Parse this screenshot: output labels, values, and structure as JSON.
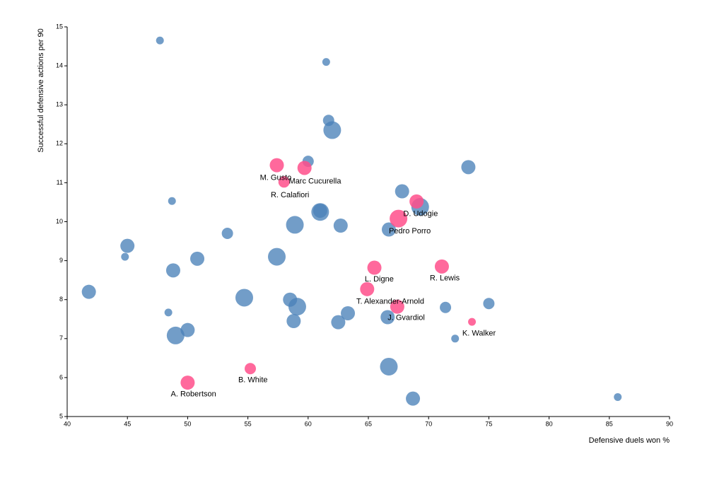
{
  "chart_data": {
    "type": "scatter",
    "xlabel": "Defensive duels won %",
    "ylabel": "Successful defensive actions per 90",
    "xlim": [
      40,
      90
    ],
    "ylim": [
      5,
      15
    ],
    "x_ticks": [
      40,
      45,
      50,
      55,
      60,
      65,
      70,
      75,
      80,
      85,
      90
    ],
    "y_ticks": [
      5,
      6,
      7,
      8,
      9,
      10,
      11,
      12,
      13,
      14,
      15
    ],
    "grid": false,
    "colors": {
      "highlight": "#ff4f8b",
      "other": "#4a81b8"
    },
    "points": [
      {
        "x": 47.7,
        "y": 14.65,
        "size": 1,
        "highlight": false
      },
      {
        "x": 61.5,
        "y": 14.1,
        "size": 1,
        "highlight": false
      },
      {
        "x": 61.7,
        "y": 12.6,
        "size": 2,
        "highlight": false
      },
      {
        "x": 62.0,
        "y": 12.35,
        "size": 4,
        "highlight": false
      },
      {
        "x": 60.0,
        "y": 11.55,
        "size": 2,
        "highlight": false
      },
      {
        "x": 73.3,
        "y": 11.4,
        "size": 3,
        "highlight": false
      },
      {
        "x": 67.8,
        "y": 10.78,
        "size": 3,
        "highlight": false
      },
      {
        "x": 48.7,
        "y": 10.53,
        "size": 1,
        "highlight": false
      },
      {
        "x": 69.3,
        "y": 10.38,
        "size": 4,
        "highlight": false
      },
      {
        "x": 61.0,
        "y": 10.25,
        "size": 4,
        "highlight": false
      },
      {
        "x": 61.0,
        "y": 10.28,
        "size": 3,
        "highlight": false
      },
      {
        "x": 58.9,
        "y": 9.92,
        "size": 4,
        "highlight": false
      },
      {
        "x": 62.7,
        "y": 9.9,
        "size": 3,
        "highlight": false
      },
      {
        "x": 66.7,
        "y": 9.8,
        "size": 3,
        "highlight": false
      },
      {
        "x": 53.3,
        "y": 9.7,
        "size": 2,
        "highlight": false
      },
      {
        "x": 45.0,
        "y": 9.38,
        "size": 3,
        "highlight": false
      },
      {
        "x": 44.8,
        "y": 9.1,
        "size": 1,
        "highlight": false
      },
      {
        "x": 50.8,
        "y": 9.05,
        "size": 3,
        "highlight": false
      },
      {
        "x": 57.4,
        "y": 9.1,
        "size": 4,
        "highlight": false
      },
      {
        "x": 48.8,
        "y": 8.75,
        "size": 3,
        "highlight": false
      },
      {
        "x": 41.8,
        "y": 8.2,
        "size": 3,
        "highlight": false
      },
      {
        "x": 54.7,
        "y": 8.05,
        "size": 4,
        "highlight": false
      },
      {
        "x": 58.5,
        "y": 8.0,
        "size": 3,
        "highlight": false
      },
      {
        "x": 59.1,
        "y": 7.82,
        "size": 4,
        "highlight": false
      },
      {
        "x": 71.4,
        "y": 7.8,
        "size": 2,
        "highlight": false
      },
      {
        "x": 75.0,
        "y": 7.9,
        "size": 2,
        "highlight": false
      },
      {
        "x": 63.3,
        "y": 7.65,
        "size": 3,
        "highlight": false
      },
      {
        "x": 48.4,
        "y": 7.67,
        "size": 1,
        "highlight": false
      },
      {
        "x": 66.6,
        "y": 7.55,
        "size": 3,
        "highlight": false
      },
      {
        "x": 58.8,
        "y": 7.45,
        "size": 3,
        "highlight": false
      },
      {
        "x": 62.5,
        "y": 7.42,
        "size": 3,
        "highlight": false
      },
      {
        "x": 49.0,
        "y": 7.08,
        "size": 4,
        "highlight": false
      },
      {
        "x": 50.0,
        "y": 7.22,
        "size": 3,
        "highlight": false
      },
      {
        "x": 72.2,
        "y": 7.0,
        "size": 1,
        "highlight": false
      },
      {
        "x": 66.7,
        "y": 6.28,
        "size": 4,
        "highlight": false
      },
      {
        "x": 68.7,
        "y": 5.46,
        "size": 3,
        "highlight": false
      },
      {
        "x": 85.7,
        "y": 5.5,
        "size": 1,
        "highlight": false
      },
      {
        "x": 57.4,
        "y": 11.45,
        "size": 3,
        "highlight": true
      },
      {
        "x": 59.7,
        "y": 11.38,
        "size": 3,
        "highlight": true
      },
      {
        "x": 58.0,
        "y": 11.02,
        "size": 2,
        "highlight": true
      },
      {
        "x": 69.0,
        "y": 10.52,
        "size": 3,
        "highlight": true
      },
      {
        "x": 67.5,
        "y": 10.08,
        "size": 4,
        "highlight": true
      },
      {
        "x": 65.5,
        "y": 8.82,
        "size": 3,
        "highlight": true
      },
      {
        "x": 71.1,
        "y": 8.85,
        "size": 3,
        "highlight": true
      },
      {
        "x": 64.9,
        "y": 8.27,
        "size": 3,
        "highlight": true
      },
      {
        "x": 67.4,
        "y": 7.82,
        "size": 3,
        "highlight": true
      },
      {
        "x": 73.6,
        "y": 7.43,
        "size": 1,
        "highlight": true
      },
      {
        "x": 55.2,
        "y": 6.23,
        "size": 2,
        "highlight": true
      },
      {
        "x": 50.0,
        "y": 5.87,
        "size": 3,
        "highlight": true
      }
    ],
    "annotations": [
      {
        "text": "M. Gusto",
        "x": 56.0,
        "y": 11.12
      },
      {
        "text": "Marc Cucurella",
        "x": 58.4,
        "y": 11.03
      },
      {
        "text": "R. Calafiori",
        "x": 56.9,
        "y": 10.68
      },
      {
        "text": "D. Udogie",
        "x": 67.9,
        "y": 10.2
      },
      {
        "text": "Pedro Porro",
        "x": 66.7,
        "y": 9.75
      },
      {
        "text": "L. Digne",
        "x": 64.7,
        "y": 8.52
      },
      {
        "text": "R. Lewis",
        "x": 70.1,
        "y": 8.55
      },
      {
        "text": "T. Alexander-Arnold",
        "x": 64.0,
        "y": 7.95
      },
      {
        "text": "J. Gvardiol",
        "x": 66.6,
        "y": 7.53
      },
      {
        "text": "K. Walker",
        "x": 72.8,
        "y": 7.13
      },
      {
        "text": "B. White",
        "x": 54.2,
        "y": 5.93
      },
      {
        "text": "A. Robertson",
        "x": 48.6,
        "y": 5.57
      }
    ]
  }
}
